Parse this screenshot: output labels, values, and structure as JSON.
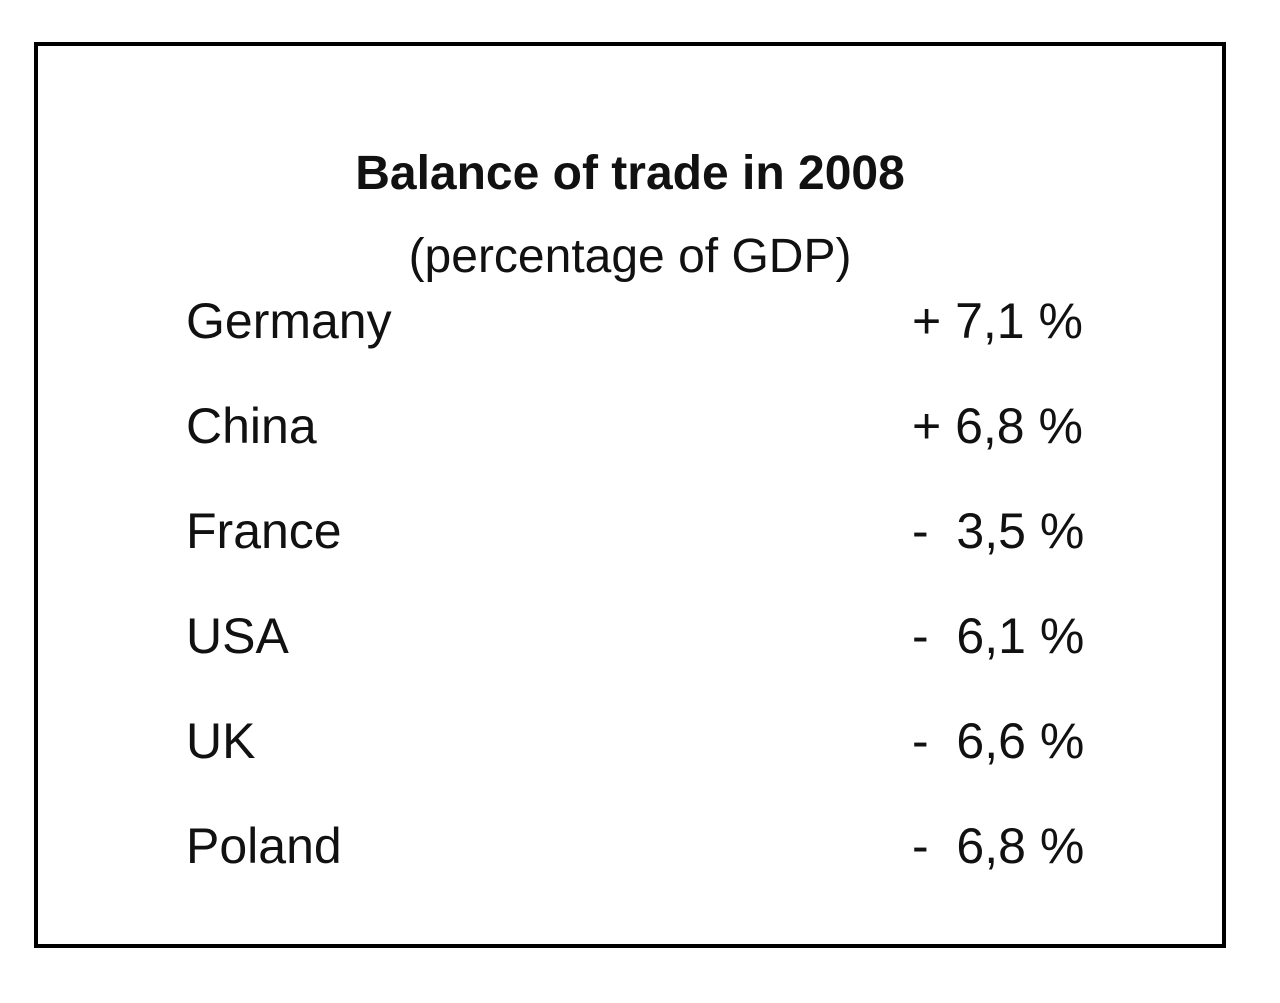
{
  "chart_data": {
    "type": "table",
    "title": "Balance of trade in 2008",
    "subtitle": "(percentage of GDP)",
    "rows": [
      {
        "country": "Germany",
        "value_text": "+ 7,1 %",
        "value": 7.1
      },
      {
        "country": "China",
        "value_text": "+ 6,8 %",
        "value": 6.8
      },
      {
        "country": "France",
        "value_text": "-  3,5 %",
        "value": -3.5
      },
      {
        "country": "USA",
        "value_text": "-  6,1 %",
        "value": -6.1
      },
      {
        "country": "UK",
        "value_text": "-  6,6 %",
        "value": -6.6
      },
      {
        "country": "Poland",
        "value_text": "-  6,8 %",
        "value": -6.8
      }
    ]
  }
}
